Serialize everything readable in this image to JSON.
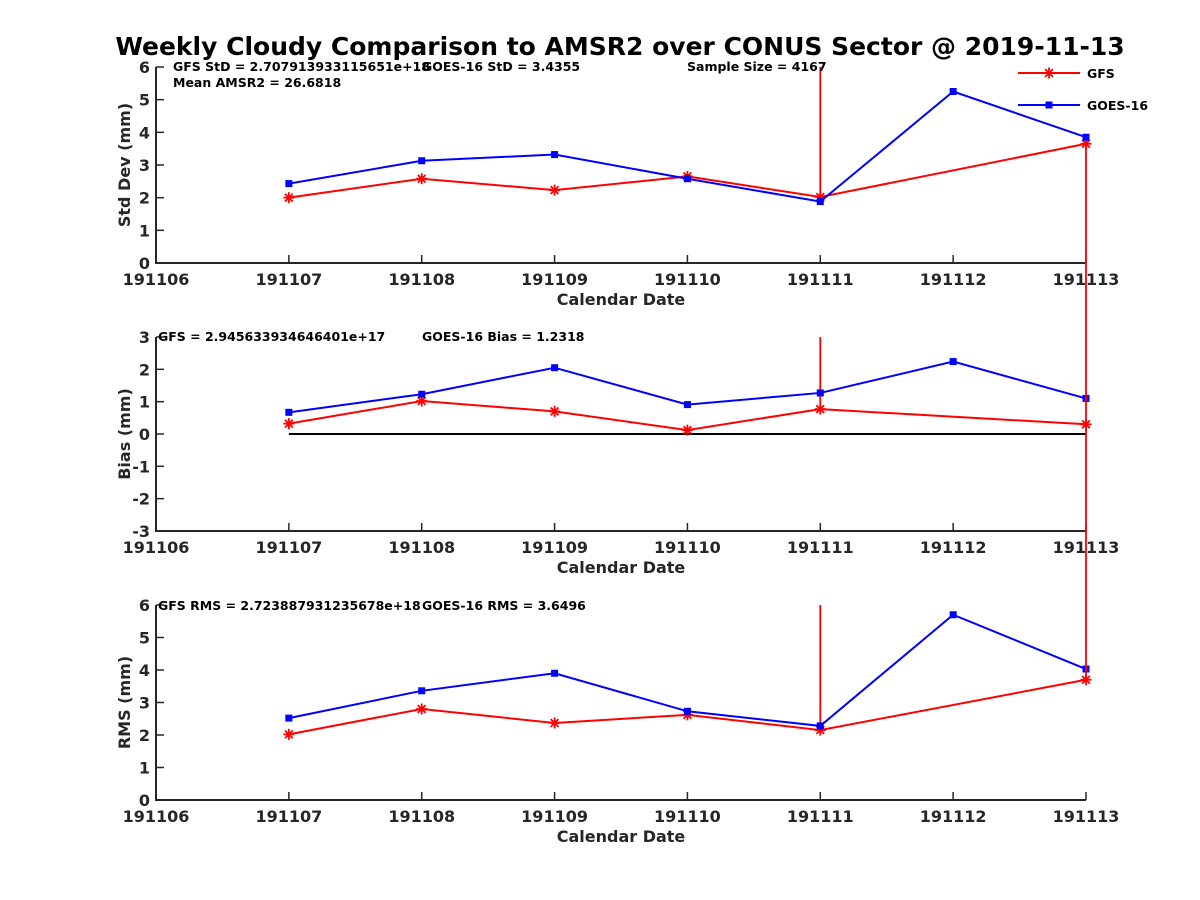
{
  "colors": {
    "gfs": "#ff0000",
    "goes": "#0000ff",
    "zero_line": "#000000",
    "axis": "#262626"
  },
  "legend": {
    "placement": "top-right",
    "items": [
      {
        "name": "GFS",
        "color": "#ff0000",
        "marker": "asterisk"
      },
      {
        "name": "GOES-16",
        "color": "#0000ff",
        "marker": "square"
      }
    ]
  },
  "chart_data": {
    "type": "line",
    "title": "Weekly Cloudy Comparison to AMSR2 over CONUS Sector @ 2019-11-13",
    "x_categories": [
      "191106",
      "191107",
      "191108",
      "191109",
      "191110",
      "191111",
      "191112",
      "191113"
    ],
    "panels": [
      {
        "id": "stddev",
        "ylabel": "Std Dev (mm)",
        "xlabel": "Calendar Date",
        "ylim": [
          0,
          6
        ],
        "yticks": [
          0,
          1,
          2,
          3,
          4,
          5,
          6
        ],
        "annotations": [
          "GFS StD = 2.707913933115651e+18",
          "GOES-16 StD = 3.4355",
          "Sample Size = 4167",
          "Mean AMSR2 = 26.6818"
        ],
        "series": [
          {
            "name": "GFS",
            "color": "#ff0000",
            "marker": "asterisk",
            "x": [
              "191107",
              "191108",
              "191109",
              "191110",
              "191111",
              "191113"
            ],
            "values": [
              2.0,
              2.58,
              2.23,
              2.65,
              2.02,
              3.65
            ]
          },
          {
            "name": "GOES-16",
            "color": "#0000ff",
            "marker": "square",
            "x": [
              "191107",
              "191108",
              "191109",
              "191110",
              "191111",
              "191112",
              "191113"
            ],
            "values": [
              2.43,
              3.13,
              3.32,
              2.58,
              1.88,
              5.25,
              3.85
            ]
          }
        ],
        "spikes": [
          {
            "x": "191111",
            "from": 2.02,
            "to": 6.0
          }
        ]
      },
      {
        "id": "bias",
        "ylabel": "Bias (mm)",
        "xlabel": "Calendar Date",
        "ylim": [
          -3,
          3
        ],
        "yticks": [
          -3,
          -2,
          -1,
          0,
          1,
          2,
          3
        ],
        "zero_line": true,
        "annotations": [
          "GFS = 2.945633934646401e+17",
          "GOES-16 Bias  = 1.2318"
        ],
        "series": [
          {
            "name": "GFS",
            "color": "#ff0000",
            "marker": "asterisk",
            "x": [
              "191107",
              "191108",
              "191109",
              "191110",
              "191111",
              "191113"
            ],
            "values": [
              0.32,
              1.02,
              0.7,
              0.12,
              0.77,
              0.3
            ]
          },
          {
            "name": "GOES-16",
            "color": "#0000ff",
            "marker": "square",
            "x": [
              "191107",
              "191108",
              "191109",
              "191110",
              "191111",
              "191112",
              "191113"
            ],
            "values": [
              0.67,
              1.23,
              2.05,
              0.91,
              1.27,
              2.24,
              1.1
            ]
          }
        ],
        "spikes": [
          {
            "x": "191111",
            "from": 0.77,
            "to": 3.0
          }
        ]
      },
      {
        "id": "rms",
        "ylabel": "RMS (mm)",
        "xlabel": "Calendar Date",
        "ylim": [
          0,
          6
        ],
        "yticks": [
          0,
          1,
          2,
          3,
          4,
          5,
          6
        ],
        "annotations": [
          "GFS RMS = 2.723887931235678e+18",
          "GOES-16 RMS = 3.6496"
        ],
        "series": [
          {
            "name": "GFS",
            "color": "#ff0000",
            "marker": "asterisk",
            "x": [
              "191107",
              "191108",
              "191109",
              "191110",
              "191111",
              "191113"
            ],
            "values": [
              2.02,
              2.8,
              2.37,
              2.62,
              2.15,
              3.7
            ]
          },
          {
            "name": "GOES-16",
            "color": "#0000ff",
            "marker": "square",
            "x": [
              "191107",
              "191108",
              "191109",
              "191110",
              "191111",
              "191112",
              "191113"
            ],
            "values": [
              2.52,
              3.36,
              3.9,
              2.73,
              2.28,
              5.7,
              4.03
            ]
          }
        ],
        "spikes": [
          {
            "x": "191111",
            "from": 2.15,
            "to": 6.0
          }
        ]
      }
    ],
    "cross_panel_gfs_spike": {
      "x": "191113",
      "description": "GFS values at 191113 drawn as vertical line spanning panels"
    }
  }
}
